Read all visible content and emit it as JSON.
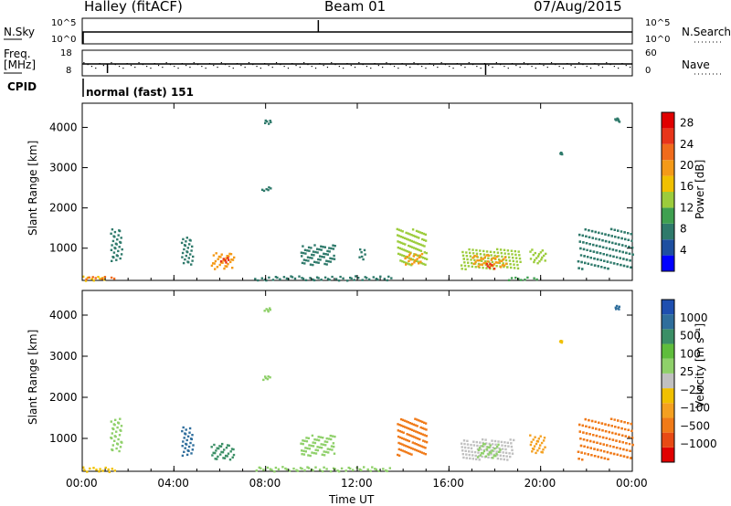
{
  "header": {
    "site": "Halley (fitACF)",
    "beam": "Beam 01",
    "date": "07/Aug/2015"
  },
  "panel_labels": {
    "nsky": "N.Sky",
    "nsearch": "N.Search",
    "freq": "Freq.",
    "freq_unit": "[MHz]",
    "nave": "Nave",
    "cpid": "CPID",
    "cpid_value": "normal (fast) 151"
  },
  "noise_ticks": {
    "left_top": "10^5",
    "left_bottom": "10^0",
    "right_top": "10^5",
    "right_bottom": "10^0"
  },
  "freq_ticks": {
    "left_top": "18",
    "left_bottom": "8",
    "right_top": "60",
    "right_bottom": "0"
  },
  "colors": {
    "power_scale": [
      "#0000ff",
      "#1e4fa0",
      "#2f7a6b",
      "#3fa050",
      "#9ccc3c",
      "#f0c000",
      "#f49a18",
      "#f06b1c",
      "#e8351a",
      "#e00000"
    ],
    "velocity_scale": [
      "#1e4fb0",
      "#2f6e9c",
      "#3b8f66",
      "#5fbd3c",
      "#8fd06a",
      "#c0c0c0",
      "#f0c000",
      "#f4a020",
      "#f07a18",
      "#e84a14",
      "#e00000"
    ],
    "series_line": "#000000"
  },
  "chart_data": [
    {
      "type": "heatmap",
      "name": "power-panel",
      "ylabel": "Slant Range [km]",
      "yticks": [
        "1000",
        "2000",
        "3000",
        "4000"
      ],
      "ylim": [
        200,
        4600
      ],
      "xlim": [
        0,
        24
      ],
      "colorbar_label": "Power [dB]",
      "colorbar_ticks": [
        "4",
        "8",
        "12",
        "16",
        "20",
        "24",
        "28"
      ],
      "clim": [
        0,
        30
      ],
      "blobs": [
        {
          "t": [
            0.0,
            1.0
          ],
          "r": [
            200,
            320
          ],
          "v": 16
        },
        {
          "t": [
            0.0,
            1.5
          ],
          "r": [
            250,
            320
          ],
          "v": 22
        },
        {
          "t": [
            1.2,
            1.7
          ],
          "r": [
            700,
            1500
          ],
          "v": 6
        },
        {
          "t": [
            4.3,
            4.8
          ],
          "r": [
            600,
            1300
          ],
          "v": 8
        },
        {
          "t": [
            5.6,
            6.6
          ],
          "r": [
            500,
            900
          ],
          "v": 18
        },
        {
          "t": [
            6.0,
            6.4
          ],
          "r": [
            650,
            800
          ],
          "v": 26
        },
        {
          "t": [
            7.8,
            8.2
          ],
          "r": [
            2450,
            2550
          ],
          "v": 6
        },
        {
          "t": [
            7.9,
            8.2
          ],
          "r": [
            4100,
            4200
          ],
          "v": 6
        },
        {
          "t": [
            9.5,
            11.0
          ],
          "r": [
            600,
            1100
          ],
          "v": 8
        },
        {
          "t": [
            12.0,
            12.3
          ],
          "r": [
            700,
            1000
          ],
          "v": 6
        },
        {
          "t": [
            13.7,
            15.0
          ],
          "r": [
            600,
            1500
          ],
          "v": 14
        },
        {
          "t": [
            14.0,
            14.8
          ],
          "r": [
            600,
            900
          ],
          "v": 20
        },
        {
          "t": [
            16.5,
            19.1
          ],
          "r": [
            500,
            1000
          ],
          "v": 12
        },
        {
          "t": [
            17.0,
            18.5
          ],
          "r": [
            550,
            850
          ],
          "v": 20
        },
        {
          "t": [
            17.6,
            18.0
          ],
          "r": [
            500,
            650
          ],
          "v": 26
        },
        {
          "t": [
            19.5,
            20.2
          ],
          "r": [
            650,
            1000
          ],
          "v": 14
        },
        {
          "t": [
            20.8,
            20.9
          ],
          "r": [
            3350,
            3400
          ],
          "v": 6
        },
        {
          "t": [
            21.6,
            24.0
          ],
          "r": [
            500,
            1500
          ],
          "v": 8
        },
        {
          "t": [
            23.2,
            23.4
          ],
          "r": [
            4150,
            4250
          ],
          "v": 6
        },
        {
          "t": [
            7.5,
            13.5
          ],
          "r": [
            220,
            330
          ],
          "v": 8
        },
        {
          "t": [
            18.5,
            20.0
          ],
          "r": [
            220,
            300
          ],
          "v": 10
        }
      ]
    },
    {
      "type": "heatmap",
      "name": "velocity-panel",
      "ylabel": "Slant Range [km]",
      "xlabel": "Time UT",
      "yticks": [
        "1000",
        "2000",
        "3000",
        "4000"
      ],
      "xticks": [
        "00:00",
        "04:00",
        "08:00",
        "12:00",
        "16:00",
        "20:00",
        "00:00"
      ],
      "ylim": [
        200,
        4600
      ],
      "xlim": [
        0,
        24
      ],
      "colorbar_label": "Velocity [m s⁻¹]",
      "colorbar_ticks": [
        "1000",
        "500",
        "100",
        "25",
        "−25",
        "−100",
        "−500",
        "−1000"
      ],
      "blobs": [
        {
          "t": [
            0.0,
            1.5
          ],
          "r": [
            200,
            320
          ],
          "c": 6
        },
        {
          "t": [
            1.2,
            1.7
          ],
          "r": [
            700,
            1500
          ],
          "c": 4
        },
        {
          "t": [
            4.3,
            4.8
          ],
          "r": [
            600,
            1300
          ],
          "c": 1
        },
        {
          "t": [
            5.6,
            6.6
          ],
          "r": [
            500,
            900
          ],
          "c": 2
        },
        {
          "t": [
            7.8,
            8.2
          ],
          "r": [
            2450,
            2550
          ],
          "c": 4
        },
        {
          "t": [
            7.9,
            8.2
          ],
          "r": [
            4100,
            4200
          ],
          "c": 4
        },
        {
          "t": [
            9.5,
            11.0
          ],
          "r": [
            600,
            1100
          ],
          "c": 4
        },
        {
          "t": [
            13.7,
            15.0
          ],
          "r": [
            600,
            1500
          ],
          "c": 8
        },
        {
          "t": [
            16.5,
            18.8
          ],
          "r": [
            500,
            1000
          ],
          "c": 5
        },
        {
          "t": [
            17.2,
            18.2
          ],
          "r": [
            550,
            900
          ],
          "c": 4
        },
        {
          "t": [
            19.5,
            20.2
          ],
          "r": [
            650,
            1100
          ],
          "c": 7
        },
        {
          "t": [
            20.8,
            20.9
          ],
          "r": [
            3350,
            3400
          ],
          "c": 6
        },
        {
          "t": [
            21.6,
            24.0
          ],
          "r": [
            500,
            1500
          ],
          "c": 8
        },
        {
          "t": [
            23.2,
            23.4
          ],
          "r": [
            4150,
            4250
          ],
          "c": 1
        },
        {
          "t": [
            7.5,
            13.5
          ],
          "r": [
            220,
            330
          ],
          "c": 4
        }
      ]
    }
  ]
}
